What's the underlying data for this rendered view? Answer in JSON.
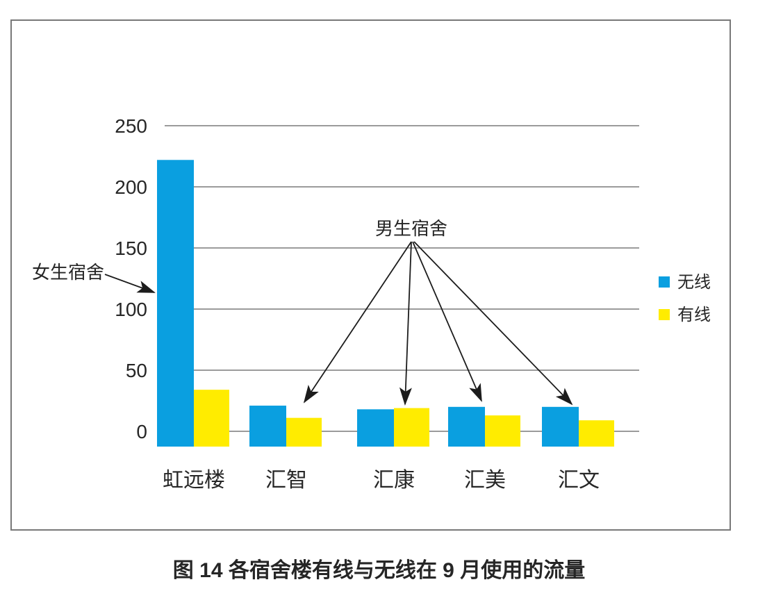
{
  "figure": {
    "caption": "图 14 各宿舍楼有线与无线在 9 月使用的流量"
  },
  "chart_data": {
    "type": "bar",
    "title": "",
    "categories": [
      "虹远楼",
      "汇智",
      "汇康",
      "汇美",
      "汇文"
    ],
    "series": [
      {
        "name": "无线",
        "color": "#0a9fe0",
        "values": [
          222,
          21,
          18,
          20,
          20
        ]
      },
      {
        "name": "有线",
        "color": "#ffec00",
        "values": [
          34,
          11,
          19,
          13,
          9
        ]
      }
    ],
    "xlabel": "",
    "ylabel": "",
    "ylim": [
      0,
      250
    ],
    "yticks": [
      0,
      50,
      100,
      150,
      200,
      250
    ],
    "grid": true,
    "legend_position": "right-middle",
    "annotations": [
      {
        "text": "女生宿舍",
        "targets": [
          "虹远楼"
        ]
      },
      {
        "text": "男生宿舍",
        "targets": [
          "汇智",
          "汇康",
          "汇美",
          "汇文"
        ]
      }
    ]
  },
  "colors": {
    "wireless_blue": "#0a9fe0",
    "wired_yellow": "#ffec00",
    "gridline": "#9b9b9b",
    "frame_border": "#787878",
    "text": "#262626",
    "arrow": "#1c1c1c",
    "background": "#ffffff"
  }
}
